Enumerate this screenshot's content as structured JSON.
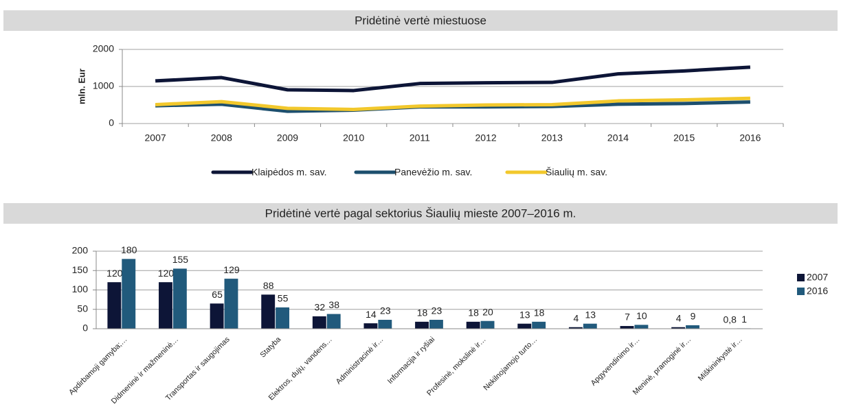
{
  "chart_data": [
    {
      "type": "line",
      "title": "Pridėtinė vertė miestuose",
      "y_label": "mln. Eur",
      "categories": [
        "2007",
        "2008",
        "2009",
        "2010",
        "2011",
        "2012",
        "2013",
        "2014",
        "2015",
        "2016"
      ],
      "series": [
        {
          "name": "Klaipėdos m. sav.",
          "color": "#0d1537",
          "values": [
            1150,
            1240,
            910,
            890,
            1080,
            1100,
            1110,
            1340,
            1420,
            1520
          ]
        },
        {
          "name": "Panevėžio m. sav.",
          "color": "#1d4f6e",
          "values": [
            480,
            520,
            330,
            360,
            450,
            450,
            460,
            520,
            540,
            580
          ]
        },
        {
          "name": "Šiaulių m. sav.",
          "color": "#f2c82c",
          "values": [
            510,
            590,
            410,
            380,
            470,
            500,
            510,
            610,
            640,
            680
          ]
        }
      ],
      "ylim": [
        0,
        2000
      ],
      "yticks": [
        0,
        1000,
        2000
      ],
      "grid": true,
      "legend": "bottom"
    },
    {
      "type": "bar",
      "title": "Pridėtinė vertė pagal sektorius Šiaulių mieste 2007–2016 m.",
      "categories": [
        "Apdirbamoji gamyba;…",
        "Didmeninė ir mažmeninė…",
        "Transportas ir saugojimas",
        "Statyba",
        "Elektros, dujų, vandens…",
        "Administracinė ir…",
        "Informacija ir ryšiai",
        "Profesinė, mokslinė ir…",
        "Nekilnojamojo turto…",
        null,
        "Apgyvendinimo ir…",
        "Meninė, pramoginė ir…",
        "Miškininkystė ir…"
      ],
      "series": [
        {
          "name": "2007",
          "color": "#0d1537",
          "values": [
            120,
            120,
            65,
            88,
            32,
            14,
            18,
            18,
            13,
            4,
            7,
            4,
            0.8
          ],
          "value_labels": [
            "120",
            "120",
            "65",
            "88",
            "32",
            "14",
            "18",
            "18",
            "13",
            "4",
            "7",
            "4",
            "0,8"
          ]
        },
        {
          "name": "2016",
          "color": "#215a7c",
          "values": [
            180,
            155,
            129,
            55,
            38,
            23,
            23,
            20,
            18,
            13,
            10,
            9,
            1
          ]
        }
      ],
      "ylim": [
        0,
        200
      ],
      "yticks": [
        0,
        50,
        100,
        150,
        200
      ],
      "grid": true,
      "legend": "right"
    }
  ]
}
